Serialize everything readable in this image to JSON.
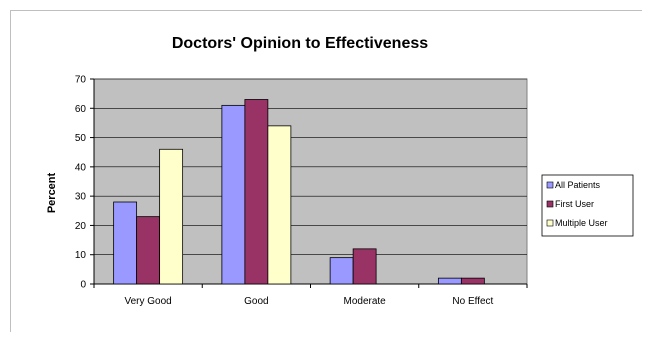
{
  "chart_data": {
    "type": "bar",
    "title": "Doctors' Opinion to Effectiveness",
    "xlabel": "",
    "ylabel": "Percent",
    "ylim": [
      0,
      70
    ],
    "yticks": [
      0,
      10,
      20,
      30,
      40,
      50,
      60,
      70
    ],
    "categories": [
      "Very Good",
      "Good",
      "Moderate",
      "No Effect"
    ],
    "series": [
      {
        "name": "All Patients",
        "color": "#9999ff",
        "values": [
          28,
          61,
          9,
          2
        ]
      },
      {
        "name": "First User",
        "color": "#993366",
        "values": [
          23,
          63,
          12,
          2
        ]
      },
      {
        "name": "Multiple User",
        "color": "#ffffcc",
        "values": [
          46,
          54,
          0,
          0
        ]
      }
    ],
    "grid": true,
    "plot_background": "#c0c0c0",
    "legend_position": "right"
  }
}
